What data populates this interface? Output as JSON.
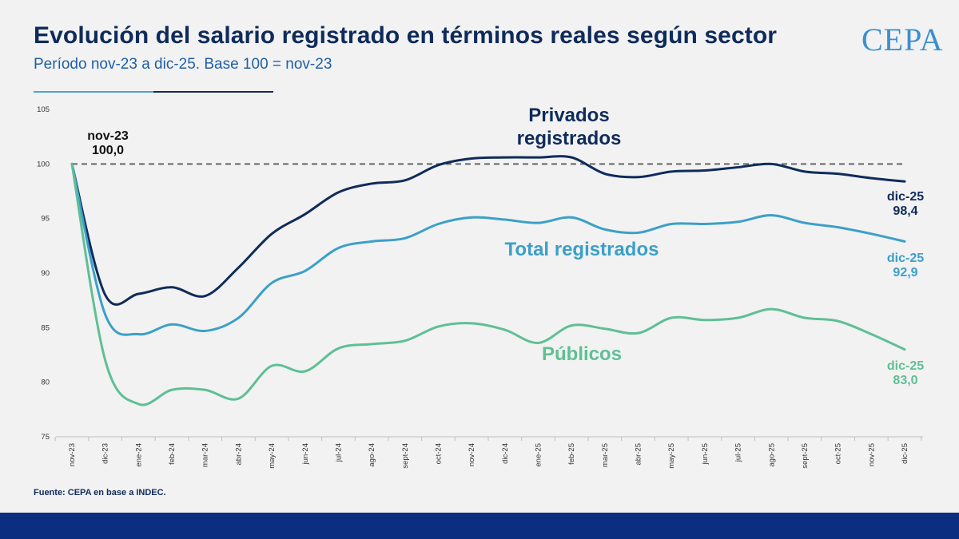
{
  "header": {
    "title": "Evolución del salario registrado en términos reales según sector",
    "subtitle": "Período nov-23 a dic-25. Base 100 = nov-23",
    "logo_text": "CEPA"
  },
  "footer": {
    "source": "Fuente: CEPA en base a INDEC."
  },
  "colors": {
    "privados": "#0f2b5b",
    "total": "#3ba0c8",
    "publicos": "#5fbf95",
    "baseline": "#666666",
    "footer_bar": "#0b2e80"
  },
  "chart_data": {
    "type": "line",
    "categories": [
      "nov-23",
      "dic-23",
      "ene-24",
      "feb-24",
      "mar-24",
      "abr-24",
      "may-24",
      "jun-24",
      "jul-24",
      "ago-24",
      "sept-24",
      "oct-24",
      "nov-24",
      "dic-24",
      "ene-25",
      "feb-25",
      "mar-25",
      "abr-25",
      "may-25",
      "jun-25",
      "jul-25",
      "ago-25",
      "sept-25",
      "oct-25",
      "nov-25",
      "dic-25"
    ],
    "ylim": [
      75,
      105
    ],
    "yticks": [
      75,
      80,
      85,
      90,
      95,
      100,
      105
    ],
    "baseline": 100,
    "series": [
      {
        "key": "privados",
        "name": "Privados registrados",
        "values": [
          100.0,
          88.0,
          88.1,
          88.7,
          87.9,
          90.5,
          93.6,
          95.4,
          97.4,
          98.2,
          98.5,
          99.9,
          100.5,
          100.6,
          100.6,
          100.6,
          99.1,
          98.8,
          99.3,
          99.4,
          99.7,
          100.0,
          99.3,
          99.1,
          98.7,
          98.4
        ],
        "end_label": {
          "period": "dic-25",
          "value": "98,4"
        }
      },
      {
        "key": "total",
        "name": "Total registrados",
        "values": [
          100.0,
          86.2,
          84.4,
          85.3,
          84.7,
          85.9,
          89.1,
          90.2,
          92.3,
          92.9,
          93.2,
          94.5,
          95.1,
          94.9,
          94.6,
          95.1,
          94.0,
          93.7,
          94.5,
          94.5,
          94.7,
          95.3,
          94.6,
          94.2,
          93.6,
          92.9
        ],
        "end_label": {
          "period": "dic-25",
          "value": "92,9"
        }
      },
      {
        "key": "publicos",
        "name": "Públicos",
        "values": [
          100.0,
          82.0,
          78.0,
          79.3,
          79.3,
          78.5,
          81.5,
          81.0,
          83.1,
          83.5,
          83.8,
          85.1,
          85.4,
          84.8,
          83.6,
          85.2,
          84.9,
          84.5,
          85.9,
          85.7,
          85.9,
          86.7,
          85.9,
          85.6,
          84.4,
          83.0
        ],
        "end_label": {
          "period": "dic-25",
          "value": "83,0"
        }
      }
    ],
    "start_label": {
      "period": "nov-23",
      "value": "100,0"
    }
  }
}
